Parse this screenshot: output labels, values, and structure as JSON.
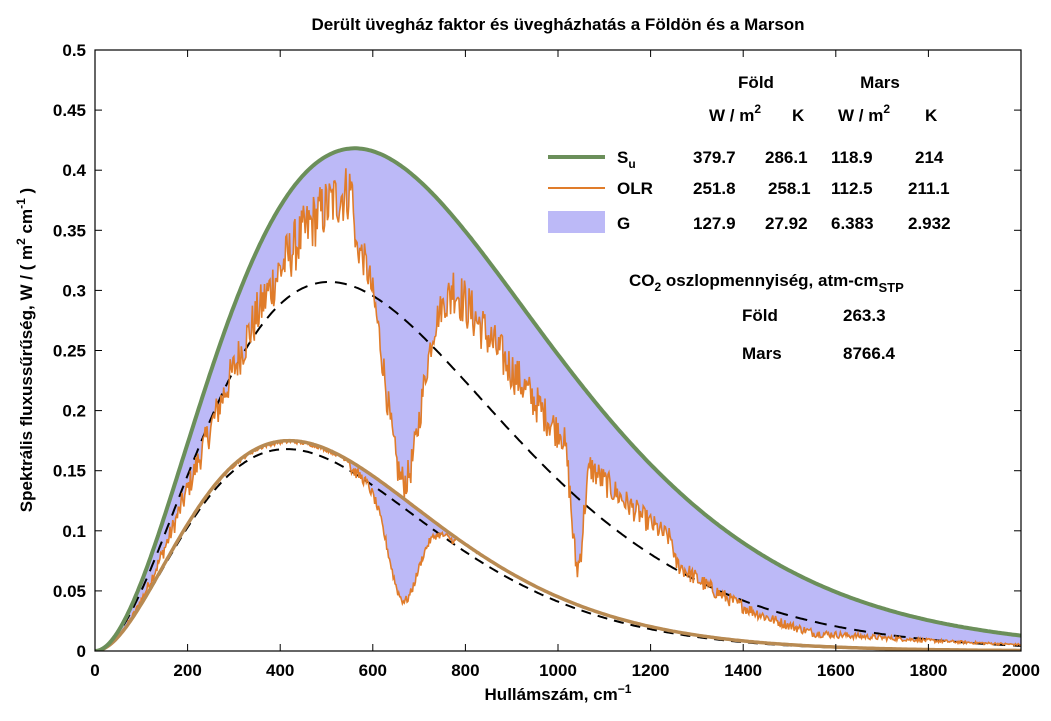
{
  "chart_data": {
    "type": "line",
    "title": "Derült üvegház faktor és üvegházhatás a Földön és a Marson",
    "xlabel": "Hullámszám, cm",
    "xlabel_sup": "−1",
    "ylabel": "Spektrális fluxussűrűség, W / ( m",
    "ylabel_mid": " cm",
    "ylabel_end": " )",
    "ylabel_sup1": "2",
    "ylabel_sup2": "-1",
    "xlim": [
      0,
      2000
    ],
    "ylim": [
      0,
      0.5
    ],
    "xticks": [
      "0",
      "200",
      "400",
      "600",
      "800",
      "1000",
      "1200",
      "1400",
      "1600",
      "1800",
      "2000"
    ],
    "yticks": [
      "0",
      "0.05",
      "0.1",
      "0.15",
      "0.2",
      "0.25",
      "0.3",
      "0.35",
      "0.4",
      "0.45",
      "0.5"
    ],
    "grid": false,
    "colors": {
      "su": "#6b8f5a",
      "olr": "#e07c2a",
      "g_fill": "#bcb9f7",
      "dashed": "#000000",
      "mars_su": "#b88a52"
    },
    "earth": {
      "surface_temperature_K": 286.1,
      "brightness_temperature_K": 258.1
    },
    "mars": {
      "surface_temperature_K": 214,
      "brightness_temperature_K": 211.1
    },
    "legend_table": {
      "header_earth": "Föld",
      "header_mars": "Mars",
      "unit_w": "W / m",
      "unit_w_sup": "2",
      "unit_k": "K",
      "rows": [
        {
          "label": "S",
          "label_sub": "u",
          "earth_w": "379.7",
          "earth_k": "286.1",
          "mars_w": "118.9",
          "mars_k": "214"
        },
        {
          "label": "OLR",
          "label_sub": "",
          "earth_w": "251.8",
          "earth_k": "258.1",
          "mars_w": "112.5",
          "mars_k": "211.1"
        },
        {
          "label": "G",
          "label_sub": "",
          "earth_w": "127.9",
          "earth_k": "27.92",
          "mars_w": "6.383",
          "mars_k": "2.932"
        }
      ]
    },
    "co2_block": {
      "title_pre": "CO",
      "title_sub": "2",
      "title_post": " oszlopmennyiség, atm-cm",
      "title_sub2": "STP",
      "rows": [
        {
          "label": "Föld",
          "value": "263.3"
        },
        {
          "label": "Mars",
          "value": "8766.4"
        }
      ]
    }
  }
}
